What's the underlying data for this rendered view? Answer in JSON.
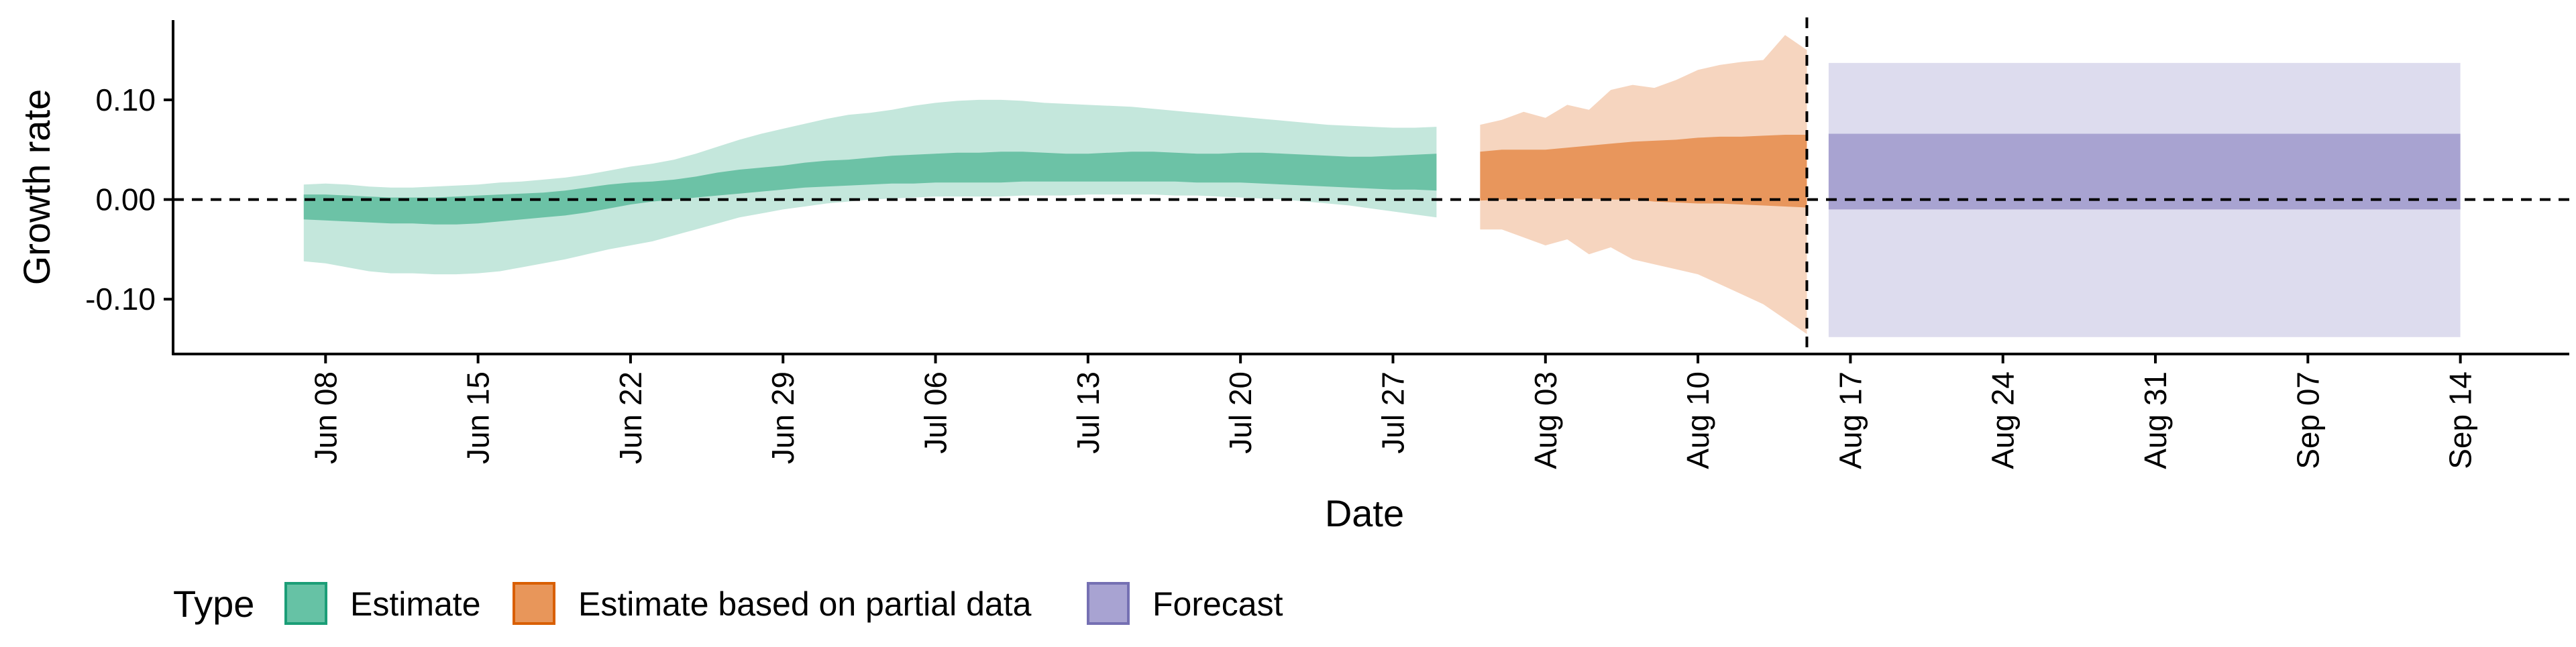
{
  "chart_data": {
    "type": "area",
    "xlabel": "Date",
    "ylabel": "Growth rate",
    "ylim": [
      -0.155,
      0.18
    ],
    "xlim": [
      "2020-06-01",
      "2020-09-19"
    ],
    "yticks": [
      -0.1,
      0.0,
      0.1
    ],
    "ytick_labels": [
      "-0.10",
      "0.00",
      "0.10"
    ],
    "xticks": [
      "2020-06-08",
      "2020-06-15",
      "2020-06-22",
      "2020-06-29",
      "2020-07-06",
      "2020-07-13",
      "2020-07-20",
      "2020-07-27",
      "2020-08-03",
      "2020-08-10",
      "2020-08-17",
      "2020-08-24",
      "2020-08-31",
      "2020-09-07",
      "2020-09-14"
    ],
    "xtick_labels": [
      "Jun 08",
      "Jun 15",
      "Jun 22",
      "Jun 29",
      "Jul 06",
      "Jul 13",
      "Jul 20",
      "Jul 27",
      "Aug 03",
      "Aug 10",
      "Aug 17",
      "Aug 24",
      "Aug 31",
      "Sep 07",
      "Sep 14"
    ],
    "grid": false,
    "reference_lines": [
      {
        "axis": "y",
        "value": 0.0,
        "style": "dashed"
      },
      {
        "axis": "x",
        "value": "2020-08-15",
        "style": "dashed"
      }
    ],
    "legend": {
      "title": "Type",
      "position": "bottom",
      "entries": [
        {
          "label": "Estimate",
          "color": "#66c2a5",
          "border": "#1b9e77"
        },
        {
          "label": "Estimate based on partial data",
          "color": "#e8965a",
          "border": "#d95f02"
        },
        {
          "label": "Forecast",
          "color": "#a8a3d2",
          "border": "#7570b3"
        }
      ]
    },
    "series": [
      {
        "name": "Estimate",
        "color_inner": "#6cc2a6",
        "color_outer": "#c4e7dc",
        "x": [
          "2020-06-07",
          "2020-06-08",
          "2020-06-09",
          "2020-06-10",
          "2020-06-11",
          "2020-06-12",
          "2020-06-13",
          "2020-06-14",
          "2020-06-15",
          "2020-06-16",
          "2020-06-17",
          "2020-06-18",
          "2020-06-19",
          "2020-06-20",
          "2020-06-21",
          "2020-06-22",
          "2020-06-23",
          "2020-06-24",
          "2020-06-25",
          "2020-06-26",
          "2020-06-27",
          "2020-06-28",
          "2020-06-29",
          "2020-06-30",
          "2020-07-01",
          "2020-07-02",
          "2020-07-03",
          "2020-07-04",
          "2020-07-05",
          "2020-07-06",
          "2020-07-07",
          "2020-07-08",
          "2020-07-09",
          "2020-07-10",
          "2020-07-11",
          "2020-07-12",
          "2020-07-13",
          "2020-07-14",
          "2020-07-15",
          "2020-07-16",
          "2020-07-17",
          "2020-07-18",
          "2020-07-19",
          "2020-07-20",
          "2020-07-21",
          "2020-07-22",
          "2020-07-23",
          "2020-07-24",
          "2020-07-25",
          "2020-07-26",
          "2020-07-27",
          "2020-07-28",
          "2020-07-29"
        ],
        "lower_90": [
          -0.062,
          -0.064,
          -0.068,
          -0.072,
          -0.074,
          -0.074,
          -0.075,
          -0.075,
          -0.074,
          -0.072,
          -0.068,
          -0.064,
          -0.06,
          -0.055,
          -0.05,
          -0.046,
          -0.042,
          -0.036,
          -0.03,
          -0.024,
          -0.018,
          -0.014,
          -0.01,
          -0.007,
          -0.004,
          -0.002,
          0.0,
          0.001,
          0.002,
          0.003,
          0.003,
          0.003,
          0.003,
          0.004,
          0.004,
          0.004,
          0.005,
          0.005,
          0.005,
          0.005,
          0.004,
          0.004,
          0.003,
          0.002,
          0.001,
          0.0,
          -0.002,
          -0.004,
          -0.006,
          -0.009,
          -0.012,
          -0.015,
          -0.018
        ],
        "lower_50": [
          -0.02,
          -0.021,
          -0.022,
          -0.023,
          -0.024,
          -0.024,
          -0.025,
          -0.025,
          -0.024,
          -0.022,
          -0.02,
          -0.018,
          -0.016,
          -0.013,
          -0.009,
          -0.005,
          -0.002,
          0.0,
          0.002,
          0.004,
          0.006,
          0.008,
          0.01,
          0.012,
          0.013,
          0.014,
          0.015,
          0.016,
          0.016,
          0.017,
          0.017,
          0.017,
          0.017,
          0.018,
          0.018,
          0.018,
          0.018,
          0.018,
          0.018,
          0.018,
          0.018,
          0.017,
          0.017,
          0.017,
          0.016,
          0.015,
          0.014,
          0.013,
          0.012,
          0.011,
          0.01,
          0.01,
          0.009
        ],
        "upper_50": [
          0.005,
          0.005,
          0.004,
          0.003,
          0.002,
          0.002,
          0.002,
          0.003,
          0.004,
          0.005,
          0.006,
          0.007,
          0.009,
          0.012,
          0.015,
          0.017,
          0.018,
          0.02,
          0.023,
          0.027,
          0.03,
          0.032,
          0.034,
          0.037,
          0.039,
          0.04,
          0.042,
          0.044,
          0.045,
          0.046,
          0.047,
          0.047,
          0.048,
          0.048,
          0.047,
          0.046,
          0.046,
          0.047,
          0.048,
          0.048,
          0.047,
          0.046,
          0.046,
          0.047,
          0.047,
          0.046,
          0.045,
          0.044,
          0.043,
          0.043,
          0.044,
          0.045,
          0.046
        ],
        "upper_90": [
          0.015,
          0.016,
          0.015,
          0.013,
          0.012,
          0.012,
          0.013,
          0.014,
          0.015,
          0.017,
          0.018,
          0.02,
          0.022,
          0.025,
          0.029,
          0.033,
          0.036,
          0.04,
          0.046,
          0.053,
          0.06,
          0.066,
          0.071,
          0.076,
          0.081,
          0.085,
          0.087,
          0.09,
          0.094,
          0.097,
          0.099,
          0.1,
          0.1,
          0.099,
          0.097,
          0.096,
          0.095,
          0.094,
          0.093,
          0.091,
          0.089,
          0.087,
          0.085,
          0.083,
          0.081,
          0.079,
          0.077,
          0.075,
          0.074,
          0.073,
          0.072,
          0.072,
          0.073
        ]
      },
      {
        "name": "Estimate based on partial data",
        "color_inner": "#e8965c",
        "color_outer": "#f6d5bf",
        "x": [
          "2020-07-31",
          "2020-08-01",
          "2020-08-02",
          "2020-08-03",
          "2020-08-04",
          "2020-08-05",
          "2020-08-06",
          "2020-08-07",
          "2020-08-08",
          "2020-08-09",
          "2020-08-10",
          "2020-08-11",
          "2020-08-12",
          "2020-08-13",
          "2020-08-14",
          "2020-08-15"
        ],
        "lower_90": [
          -0.03,
          -0.03,
          -0.038,
          -0.046,
          -0.04,
          -0.055,
          -0.048,
          -0.06,
          -0.065,
          -0.07,
          -0.075,
          -0.085,
          -0.095,
          -0.105,
          -0.12,
          -0.135
        ],
        "lower_50": [
          -0.001,
          0.0,
          0.0,
          0.0,
          0.001,
          0.001,
          0.0,
          0.0,
          -0.002,
          -0.003,
          -0.004,
          -0.004,
          -0.005,
          -0.006,
          -0.007,
          -0.008
        ],
        "upper_50": [
          0.048,
          0.05,
          0.05,
          0.05,
          0.052,
          0.054,
          0.056,
          0.058,
          0.059,
          0.06,
          0.062,
          0.063,
          0.063,
          0.064,
          0.065,
          0.065
        ],
        "upper_90": [
          0.075,
          0.08,
          0.088,
          0.082,
          0.095,
          0.09,
          0.11,
          0.115,
          0.112,
          0.12,
          0.13,
          0.135,
          0.138,
          0.14,
          0.165,
          0.15
        ]
      },
      {
        "name": "Forecast",
        "color_inner": "#a8a3d1",
        "color_outer": "#dddcee",
        "x": [
          "2020-08-16",
          "2020-09-14"
        ],
        "lower_90": [
          -0.138,
          -0.138
        ],
        "lower_50": [
          -0.01,
          -0.01
        ],
        "upper_50": [
          0.066,
          0.066
        ],
        "upper_90": [
          0.137,
          0.137
        ]
      }
    ]
  }
}
